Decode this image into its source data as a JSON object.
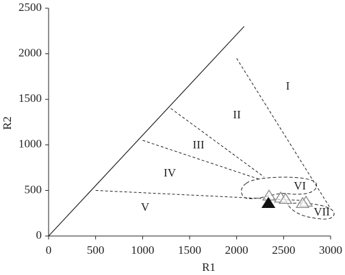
{
  "chart_data": {
    "type": "scatter",
    "x_label": "R1",
    "y_label": "R2",
    "xlim": [
      0,
      3000
    ],
    "ylim": [
      0,
      2500
    ],
    "xticks": [
      0,
      500,
      1000,
      1500,
      2000,
      2500,
      3000
    ],
    "yticks": [
      0,
      500,
      1000,
      1500,
      2000,
      2500
    ],
    "lines": [
      {
        "x": [
          0,
          2080
        ],
        "y": [
          0,
          2300
        ],
        "style": "solid"
      },
      {
        "x": [
          500,
          2700
        ],
        "y": [
          500,
          390
        ],
        "style": "dashed"
      },
      {
        "x": [
          1000,
          2250
        ],
        "y": [
          1050,
          620
        ],
        "style": "dashed"
      },
      {
        "x": [
          1300,
          2290
        ],
        "y": [
          1400,
          650
        ],
        "style": "dashed"
      },
      {
        "x": [
          2000,
          3000
        ],
        "y": [
          1950,
          300
        ],
        "style": "dashed"
      }
    ],
    "annotations": [
      {
        "text": "I",
        "x": 2545,
        "y": 1637
      },
      {
        "text": "II",
        "x": 2003,
        "y": 1321
      },
      {
        "text": "III",
        "x": 1595,
        "y": 991
      },
      {
        "text": "IV",
        "x": 1289,
        "y": 683
      },
      {
        "text": "V",
        "x": 1027,
        "y": 308
      },
      {
        "text": "VI",
        "x": 2673,
        "y": 540
      },
      {
        "text": "VII",
        "x": 2906,
        "y": 255
      }
    ],
    "series": [
      {
        "color": "#888888",
        "marker": "triangle-open",
        "x": [
          2345,
          2469,
          2520,
          2738,
          2702
        ],
        "values": [
          435,
          413,
          398,
          368,
          353
        ]
      },
      {
        "color": "#111111",
        "marker": "triangle-filled",
        "x": [
          2338
        ],
        "values": [
          353
        ]
      }
    ]
  }
}
